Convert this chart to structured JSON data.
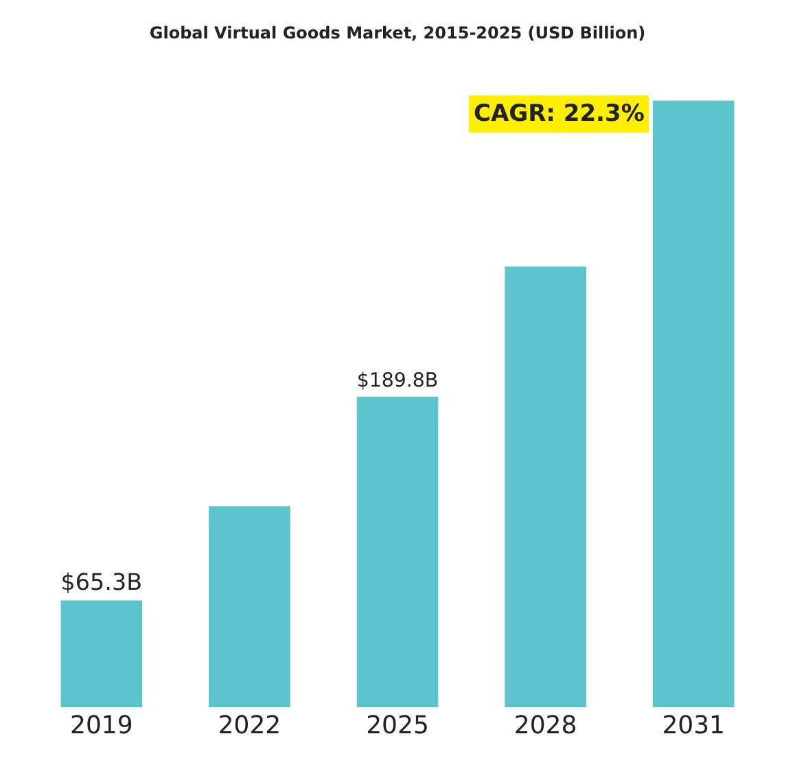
{
  "chart_data": {
    "type": "bar",
    "title": "Global Virtual Goods Market, 2015-2025 (USD Billion)",
    "categories": [
      "2019",
      "2022",
      "2025",
      "2028",
      "2031"
    ],
    "values": [
      65.3,
      122.9,
      189.8,
      269.3,
      370.8
    ],
    "value_labels": [
      "$65.3B",
      null,
      "$189.8B",
      null,
      null
    ],
    "tick_labels": "x",
    "color": "#5bc4cc",
    "annotations": [
      "CAGR: 22.3%"
    ]
  }
}
